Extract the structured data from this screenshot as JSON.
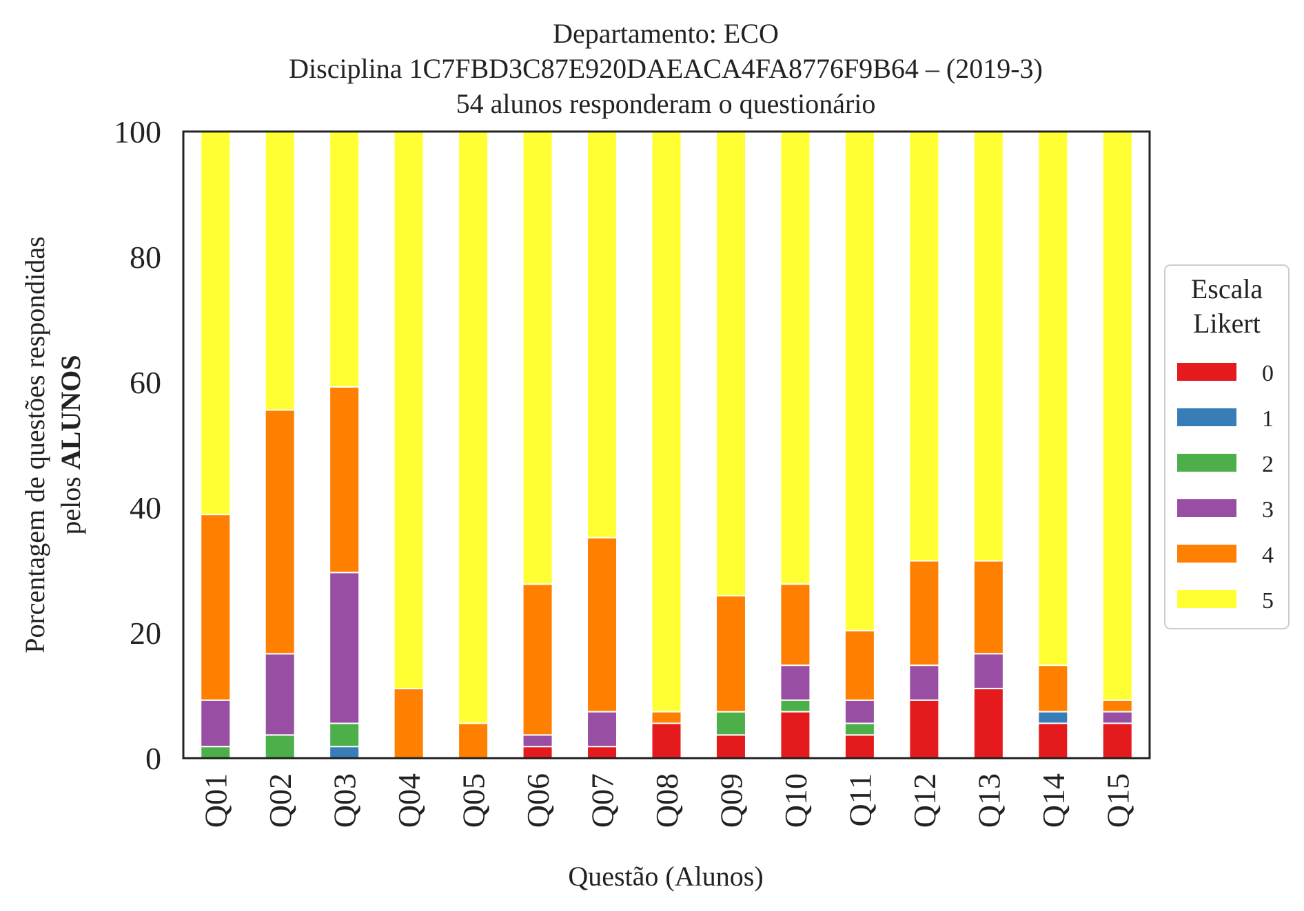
{
  "chart_data": {
    "type": "bar",
    "stacked": true,
    "title": "Departamento: ECO",
    "subtitle_lines": [
      "Disciplina 1C7FBD3C87E920DAEACA4FA8776F9B64 – (2019-3)",
      "54 alunos responderam o questionário"
    ],
    "xlabel": "Questão (Alunos)",
    "ylabel_line1": "Porcentagem de questões respondidas",
    "ylabel_line2_prefix": "pelos ",
    "ylabel_line2_bold": "ALUNOS",
    "ylim": [
      0,
      100
    ],
    "yticks": [
      "0",
      "20",
      "40",
      "60",
      "80",
      "100"
    ],
    "categories": [
      "Q01",
      "Q02",
      "Q03",
      "Q04",
      "Q05",
      "Q06",
      "Q07",
      "Q08",
      "Q09",
      "Q10",
      "Q11",
      "Q12",
      "Q13",
      "Q14",
      "Q15"
    ],
    "legend": {
      "title_lines": [
        "Escala",
        "Likert"
      ],
      "placement": "right-center"
    },
    "series": [
      {
        "name": "0",
        "color": "#e41a1c",
        "values": [
          0,
          0,
          0,
          0,
          0,
          1.85,
          1.85,
          5.56,
          3.7,
          7.41,
          3.7,
          9.26,
          11.11,
          5.56,
          5.56
        ]
      },
      {
        "name": "1",
        "color": "#377eb8",
        "values": [
          0,
          0,
          1.85,
          0,
          0,
          0,
          0,
          0,
          0,
          0,
          0,
          0,
          0,
          1.85,
          0
        ]
      },
      {
        "name": "2",
        "color": "#4daf4a",
        "values": [
          1.85,
          3.7,
          3.7,
          0,
          0,
          0,
          0,
          0,
          3.7,
          1.85,
          1.85,
          0,
          0,
          0,
          0
        ]
      },
      {
        "name": "3",
        "color": "#984ea3",
        "values": [
          7.41,
          12.96,
          24.07,
          0,
          0,
          1.85,
          5.56,
          0,
          0,
          5.56,
          3.7,
          5.56,
          5.56,
          0,
          1.85
        ]
      },
      {
        "name": "4",
        "color": "#ff7f00",
        "values": [
          29.63,
          38.89,
          29.63,
          11.11,
          5.56,
          24.07,
          27.78,
          1.85,
          18.52,
          12.96,
          11.11,
          16.67,
          14.81,
          7.41,
          1.85
        ]
      },
      {
        "name": "5",
        "color": "#ffff33",
        "values": [
          61.11,
          44.44,
          40.74,
          88.89,
          94.44,
          72.22,
          64.81,
          92.59,
          74.07,
          72.22,
          79.63,
          68.52,
          68.52,
          85.19,
          90.74
        ]
      }
    ]
  }
}
